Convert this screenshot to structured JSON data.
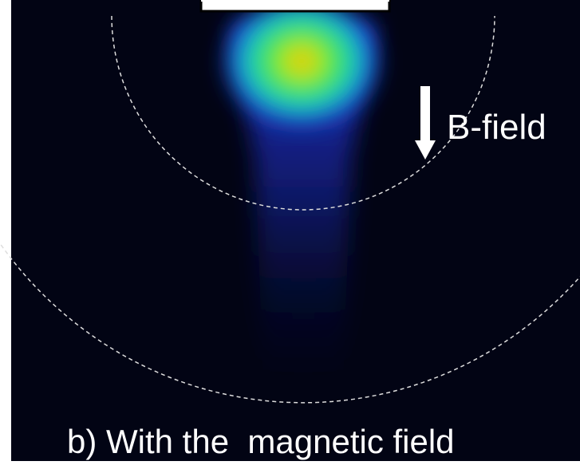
{
  "labels": {
    "field": "B-field",
    "caption": "b) With the  magnetic field"
  }
}
